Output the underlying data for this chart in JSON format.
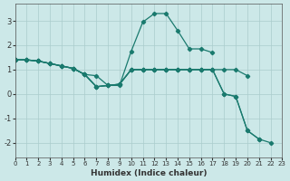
{
  "bg_color": "#cce8e8",
  "line_color": "#1a7a6e",
  "grid_color": "#aacccc",
  "xlabel": "Humidex (Indice chaleur)",
  "xlim": [
    0,
    23
  ],
  "ylim": [
    -2.6,
    3.7
  ],
  "xticks": [
    0,
    1,
    2,
    3,
    4,
    5,
    6,
    7,
    8,
    9,
    10,
    11,
    12,
    13,
    14,
    15,
    16,
    17,
    18,
    19,
    20,
    21,
    22,
    23
  ],
  "yticks": [
    -2,
    -1,
    0,
    1,
    2,
    3
  ],
  "line1_x": [
    0,
    1,
    2,
    3,
    4,
    5,
    6,
    7,
    8,
    9,
    10,
    11,
    12,
    13,
    14,
    15,
    16,
    17,
    18,
    19,
    20
  ],
  "line1_y": [
    1.4,
    1.4,
    1.35,
    1.25,
    1.15,
    1.05,
    0.8,
    0.75,
    0.35,
    0.4,
    1.0,
    1.0,
    1.0,
    1.0,
    1.0,
    1.0,
    1.0,
    1.0,
    1.0,
    1.0,
    0.75
  ],
  "line2_x": [
    0,
    1,
    2,
    3,
    4,
    5,
    6,
    7,
    8,
    9,
    10,
    11,
    12,
    13,
    14,
    15,
    16,
    17
  ],
  "line2_y": [
    1.4,
    1.4,
    1.35,
    1.25,
    1.15,
    1.05,
    0.8,
    0.3,
    0.35,
    0.35,
    1.75,
    2.95,
    3.3,
    3.3,
    2.6,
    1.85,
    1.85,
    1.7
  ],
  "line3_x": [
    0,
    1,
    2,
    3,
    4,
    5,
    6,
    7,
    8,
    9,
    10,
    11,
    12,
    13,
    14,
    15,
    16,
    17,
    18,
    19,
    20,
    21
  ],
  "line3_y": [
    1.4,
    1.4,
    1.35,
    1.25,
    1.15,
    1.05,
    0.8,
    0.3,
    0.35,
    0.4,
    1.0,
    1.0,
    1.0,
    1.0,
    1.0,
    1.0,
    1.0,
    1.0,
    0.0,
    -0.1,
    -1.5,
    -1.85
  ],
  "line4_x": [
    0,
    1,
    2,
    3,
    4,
    5,
    6,
    7,
    8,
    9,
    10,
    11,
    12,
    13,
    14,
    15,
    16,
    17,
    18,
    19,
    20,
    21,
    22
  ],
  "line4_y": [
    1.4,
    1.4,
    1.35,
    1.25,
    1.15,
    1.05,
    0.8,
    0.3,
    0.35,
    0.4,
    1.0,
    1.0,
    1.0,
    1.0,
    1.0,
    1.0,
    1.0,
    1.0,
    0.0,
    -0.1,
    -1.5,
    -1.85,
    -2.0
  ]
}
